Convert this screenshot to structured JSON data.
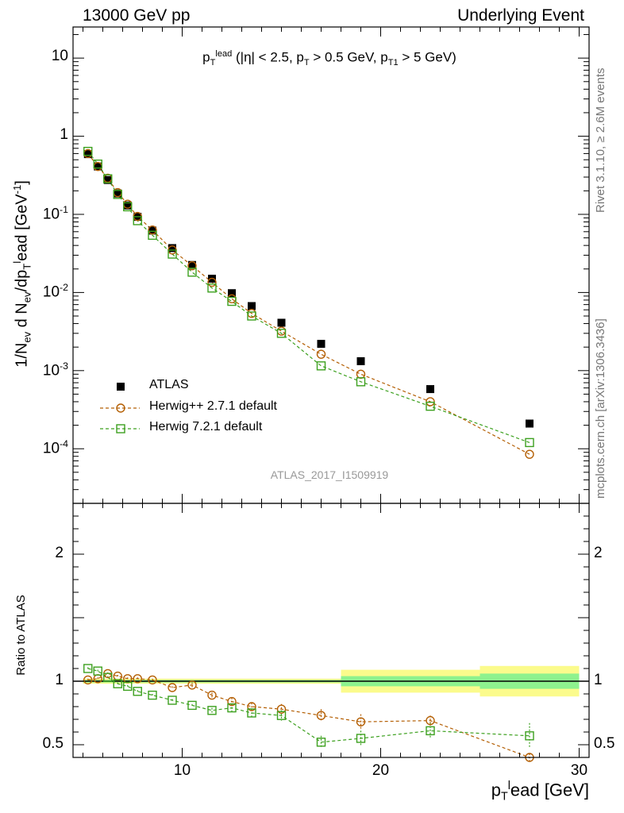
{
  "header": {
    "left": "13000 GeV pp",
    "right": "Underlying Event"
  },
  "side_labels": {
    "rivet": "Rivet 3.1.10, ≥ 2.6M events",
    "mcplots": "mcplots.cern.ch [arXiv:1306.3436]"
  },
  "chart_data": [
    {
      "type": "scatter",
      "panel": "main",
      "title": "p_T^lead (|η| < 2.5, p_T > 0.5 GeV, p_T1 > 5 GeV)",
      "ylabel": "1/N_ev d N_ev/dp_T^lead [GeV^-1]",
      "yscale": "log",
      "ylim": [
        2e-05,
        25
      ],
      "xlim": [
        4.5,
        30.5
      ],
      "y_tick_labels": [
        "10",
        "1",
        "10^-1",
        "10^-2",
        "10^-3",
        "10^-4"
      ],
      "legend_position": "lower-left",
      "watermark": "ATLAS_2017_I1509919",
      "x": [
        5.25,
        5.75,
        6.25,
        6.75,
        7.25,
        7.75,
        8.5,
        9.5,
        10.5,
        11.5,
        12.5,
        13.5,
        15.0,
        17.0,
        19.0,
        22.5,
        27.5
      ],
      "series": [
        {
          "name": "ATLAS",
          "color": "#000000",
          "marker": "filled-square",
          "values": [
            0.59,
            0.41,
            0.275,
            0.185,
            0.13,
            0.093,
            0.062,
            0.037,
            0.0225,
            0.015,
            0.0098,
            0.0067,
            0.0041,
            0.0022,
            0.00132,
            0.00058,
            0.00021
          ]
        },
        {
          "name": "Herwig++ 2.7.1 default",
          "color": "#b45f04",
          "marker": "open-circle",
          "line": "dashed",
          "values": [
            0.6,
            0.41,
            0.29,
            0.19,
            0.135,
            0.094,
            0.063,
            0.035,
            0.022,
            0.0135,
            0.0083,
            0.0054,
            0.0032,
            0.00162,
            0.0009,
            0.0004,
            8.5e-05
          ]
        },
        {
          "name": "Herwig 7.2.1 default",
          "color": "#3ca01e",
          "marker": "open-square",
          "line": "dashed",
          "values": [
            0.64,
            0.44,
            0.285,
            0.18,
            0.125,
            0.083,
            0.054,
            0.031,
            0.0182,
            0.0114,
            0.0077,
            0.005,
            0.003,
            0.00115,
            0.00072,
            0.00035,
            0.00012
          ]
        }
      ]
    },
    {
      "type": "scatter",
      "panel": "ratio",
      "ylabel": "Ratio to ATLAS",
      "xlabel": "p_T^lead [GeV]",
      "ylim": [
        0.4,
        2.4
      ],
      "xlim": [
        4.5,
        30.5
      ],
      "x_tick_labels": [
        "10",
        "20",
        "30"
      ],
      "y_tick_labels": [
        "0.5",
        "1",
        "2"
      ],
      "x": [
        5.25,
        5.75,
        6.25,
        6.75,
        7.25,
        7.75,
        8.5,
        9.5,
        10.5,
        11.5,
        12.5,
        13.5,
        15.0,
        17.0,
        19.0,
        22.5,
        27.5
      ],
      "bands": [
        {
          "x": [
            5,
            18,
            18,
            25,
            25,
            30
          ],
          "inner": [
            0.01,
            0.01,
            0.04,
            0.04,
            0.06,
            0.06
          ],
          "outer": [
            0.02,
            0.02,
            0.09,
            0.09,
            0.12,
            0.12
          ],
          "inner_color": "#8ef28e",
          "outer_color": "#fbfb8c"
        }
      ],
      "series": [
        {
          "name": "Herwig++ 2.7.1 default",
          "color": "#b45f04",
          "values": [
            1.01,
            1.02,
            1.06,
            1.04,
            1.02,
            1.02,
            1.01,
            0.95,
            0.97,
            0.89,
            0.84,
            0.8,
            0.78,
            0.73,
            0.68,
            0.69,
            0.4
          ],
          "errors": [
            0.01,
            0.01,
            0.01,
            0.01,
            0.01,
            0.01,
            0.01,
            0.01,
            0.02,
            0.02,
            0.03,
            0.03,
            0.04,
            0.05,
            0.06,
            0.04,
            0.03
          ]
        },
        {
          "name": "Herwig 7.2.1 default",
          "color": "#3ca01e",
          "values": [
            1.1,
            1.08,
            1.03,
            0.98,
            0.96,
            0.92,
            0.89,
            0.85,
            0.81,
            0.77,
            0.79,
            0.75,
            0.73,
            0.52,
            0.55,
            0.61,
            0.57
          ],
          "errors": [
            0.01,
            0.01,
            0.01,
            0.01,
            0.01,
            0.01,
            0.01,
            0.01,
            0.01,
            0.02,
            0.03,
            0.03,
            0.04,
            0.05,
            0.06,
            0.06,
            0.1
          ]
        }
      ]
    }
  ]
}
